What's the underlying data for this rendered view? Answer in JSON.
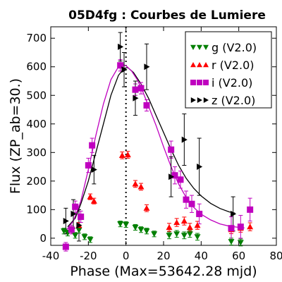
{
  "chart_data": {
    "type": "scatter",
    "title": "05D4fg : Courbes de Lumiere",
    "xlabel": "Phase (Max=53642.28 mjd)",
    "ylabel": "Flux (ZP_ab=30.)",
    "xlim": [
      -40,
      80
    ],
    "ylim": [
      -25,
      740
    ],
    "x_ticks": [
      -40,
      -20,
      0,
      20,
      40,
      60,
      80
    ],
    "y_ticks": [
      0,
      100,
      200,
      300,
      400,
      500,
      600,
      700
    ],
    "x_tick_labels": [
      "-40",
      "-20",
      "0",
      "20",
      "40",
      "60",
      "80"
    ],
    "y_tick_labels": [
      "0",
      "100",
      "200",
      "300",
      "400",
      "500",
      "600",
      "700"
    ],
    "vertical_line_x": 0,
    "legend_position": "top-right",
    "grid": false,
    "series": [
      {
        "name": "g (V2.0)",
        "color": "#007f00",
        "marker": "triangle-down",
        "points": [
          [
            -33,
            25,
            10
          ],
          [
            -31,
            18,
            10
          ],
          [
            -29,
            30,
            10
          ],
          [
            -27,
            10,
            10
          ],
          [
            -25,
            28,
            10
          ],
          [
            -22,
            5,
            10
          ],
          [
            -19,
            -5,
            10
          ],
          [
            -3,
            50,
            10
          ],
          [
            0,
            48,
            10
          ],
          [
            5,
            38,
            10
          ],
          [
            8,
            30,
            10
          ],
          [
            11,
            25,
            10
          ],
          [
            15,
            15,
            10
          ],
          [
            23,
            10,
            12
          ],
          [
            27,
            15,
            12
          ],
          [
            31,
            10,
            12
          ],
          [
            34,
            15,
            12
          ],
          [
            38,
            5,
            12
          ],
          [
            56,
            -12,
            12
          ],
          [
            61,
            -15,
            12
          ]
        ]
      },
      {
        "name": "r (V2.0)",
        "color": "#ff0000",
        "marker": "triangle-up",
        "points": [
          [
            -29,
            30,
            10
          ],
          [
            -25,
            45,
            10
          ],
          [
            -19,
            145,
            10
          ],
          [
            -17,
            130,
            10
          ],
          [
            -2,
            290,
            12
          ],
          [
            1,
            292,
            12
          ],
          [
            5,
            190,
            12
          ],
          [
            8,
            180,
            12
          ],
          [
            11,
            105,
            12
          ],
          [
            23,
            38,
            14
          ],
          [
            27,
            55,
            14
          ],
          [
            31,
            60,
            14
          ],
          [
            34,
            38,
            14
          ],
          [
            38,
            45,
            14
          ],
          [
            56,
            30,
            14
          ],
          [
            61,
            35,
            14
          ],
          [
            66,
            40,
            14
          ]
        ]
      },
      {
        "name": "i (V2.0)",
        "color": "#bf00bf",
        "marker": "square",
        "points": [
          [
            -32,
            -30,
            15
          ],
          [
            -29,
            30,
            15
          ],
          [
            -27,
            110,
            20
          ],
          [
            -24,
            75,
            20
          ],
          [
            -20,
            255,
            25
          ],
          [
            -18,
            325,
            25
          ],
          [
            -3,
            605,
            20
          ],
          [
            5,
            520,
            20
          ],
          [
            8,
            525,
            20
          ],
          [
            11,
            465,
            20
          ],
          [
            24,
            310,
            30
          ],
          [
            26,
            220,
            30
          ],
          [
            29,
            205,
            30
          ],
          [
            32,
            135,
            30
          ],
          [
            35,
            120,
            30
          ],
          [
            39,
            85,
            35
          ],
          [
            56,
            35,
            40
          ],
          [
            61,
            40,
            40
          ],
          [
            66,
            100,
            40
          ]
        ]
      },
      {
        "name": "z (V2.0)",
        "color": "#000000",
        "marker": "triangle-right",
        "points": [
          [
            -32,
            60,
            45
          ],
          [
            -28,
            85,
            50
          ],
          [
            -25,
            45,
            55
          ],
          [
            -17,
            240,
            50
          ],
          [
            -3,
            670,
            50
          ],
          [
            -1,
            590,
            60
          ],
          [
            5,
            490,
            60
          ],
          [
            11,
            600,
            80
          ],
          [
            24,
            215,
            70
          ],
          [
            31,
            345,
            90
          ],
          [
            39,
            250,
            100
          ],
          [
            57,
            85,
            60
          ]
        ]
      }
    ],
    "fit_curves": [
      {
        "color": "#000000",
        "points": [
          [
            -31,
            40
          ],
          [
            -27,
            70
          ],
          [
            -24,
            120
          ],
          [
            -20,
            200
          ],
          [
            -16,
            300
          ],
          [
            -12,
            400
          ],
          [
            -8,
            500
          ],
          [
            -4,
            570
          ],
          [
            -1,
            595
          ],
          [
            1,
            597
          ],
          [
            4,
            580
          ],
          [
            8,
            540
          ],
          [
            12,
            490
          ],
          [
            16,
            430
          ],
          [
            20,
            370
          ],
          [
            24,
            310
          ],
          [
            28,
            255
          ],
          [
            32,
            210
          ],
          [
            36,
            175
          ],
          [
            40,
            148
          ],
          [
            45,
            122
          ],
          [
            50,
            104
          ],
          [
            55,
            92
          ],
          [
            58,
            88
          ]
        ]
      },
      {
        "color": "#bf00bf",
        "points": [
          [
            -32,
            25
          ],
          [
            -28,
            60
          ],
          [
            -24,
            130
          ],
          [
            -20,
            240
          ],
          [
            -16,
            360
          ],
          [
            -12,
            470
          ],
          [
            -8,
            555
          ],
          [
            -4,
            600
          ],
          [
            -2,
            608
          ],
          [
            0,
            604
          ],
          [
            3,
            585
          ],
          [
            6,
            555
          ],
          [
            9,
            512
          ],
          [
            12,
            462
          ],
          [
            16,
            395
          ],
          [
            20,
            320
          ],
          [
            24,
            250
          ],
          [
            28,
            190
          ],
          [
            32,
            143
          ],
          [
            36,
            108
          ],
          [
            40,
            84
          ],
          [
            45,
            64
          ],
          [
            50,
            50
          ],
          [
            55,
            42
          ],
          [
            60,
            38
          ],
          [
            63,
            36
          ]
        ]
      }
    ]
  }
}
